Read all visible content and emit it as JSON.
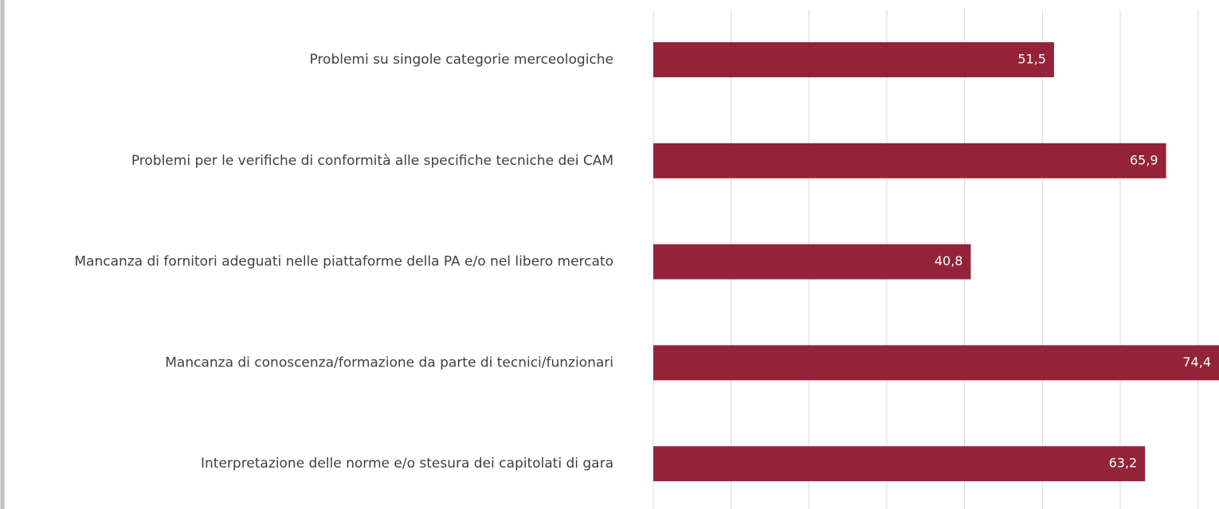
{
  "chart_data": {
    "type": "hbar",
    "categories": [
      "Problemi su singole categorie merceologiche",
      "Problemi per le verifiche di conformità alle specifiche tecniche dei CAM",
      "Mancanza di fornitori adeguati nelle piattaforme della PA e/o nel libero mercato",
      "Mancanza di conoscenza/formazione da parte di tecnici/funzionari",
      "Interpretazione delle norme e/o stesura dei capitolati di gara"
    ],
    "values": [
      51.5,
      65.9,
      40.8,
      74.4,
      63.2
    ],
    "value_labels": [
      "51,5",
      "65,9",
      "40,8",
      "74,4",
      "63,2"
    ],
    "color": "#942339",
    "xlim": [
      0,
      72.7
    ],
    "xticks": [
      0,
      10,
      20,
      30,
      40,
      50,
      60,
      70
    ],
    "grid": true
  }
}
